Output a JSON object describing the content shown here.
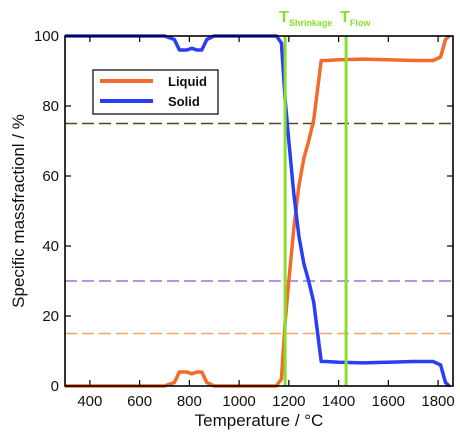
{
  "chart_data": {
    "type": "line",
    "xlabel": "Temperature / °C",
    "ylabel": "Specific massfractionl / %",
    "xlim": [
      300,
      1860
    ],
    "ylim": [
      0,
      100
    ],
    "xticks": [
      400,
      600,
      800,
      1000,
      1200,
      1400,
      1600,
      1800
    ],
    "yticks": [
      0,
      20,
      40,
      60,
      80,
      100
    ],
    "x_tick_labels": [
      "400",
      "600",
      "800",
      "1000",
      "1200",
      "1400",
      "1600",
      "1800"
    ],
    "y_tick_labels": [
      "0",
      "20",
      "40",
      "60",
      "80",
      "100"
    ],
    "legend_position": "top-left",
    "series": [
      {
        "name": "Liquid",
        "color": "#f26b2a",
        "x": [
          300,
          700,
          740,
          760,
          790,
          810,
          830,
          850,
          870,
          900,
          1000,
          1100,
          1150,
          1170,
          1185,
          1200,
          1220,
          1240,
          1260,
          1280,
          1300,
          1330,
          1350,
          1400,
          1500,
          1600,
          1700,
          1780,
          1810,
          1830,
          1845
        ],
        "y": [
          0,
          0,
          1,
          4,
          4,
          3.5,
          4,
          4,
          1,
          0,
          0,
          0,
          0,
          2,
          18,
          30,
          45,
          57,
          65,
          70,
          76,
          93,
          93,
          93.2,
          93.4,
          93.2,
          93,
          93,
          94,
          99,
          100
        ]
      },
      {
        "name": "Solid",
        "color": "#2b3df5",
        "x": [
          300,
          700,
          740,
          760,
          790,
          810,
          830,
          850,
          870,
          900,
          1000,
          1100,
          1150,
          1170,
          1185,
          1200,
          1220,
          1240,
          1260,
          1280,
          1300,
          1330,
          1350,
          1400,
          1500,
          1600,
          1700,
          1780,
          1810,
          1830,
          1845
        ],
        "y": [
          100,
          100,
          99,
          96,
          96,
          96.5,
          96,
          96,
          99,
          100,
          100,
          100,
          100,
          98,
          82,
          70,
          55,
          43,
          35,
          30,
          24,
          7,
          7,
          6.8,
          6.6,
          6.8,
          7,
          7,
          6,
          1,
          0
        ]
      }
    ],
    "reference_lines": {
      "horizontal": [
        {
          "y": 75,
          "color": "#4d4a1a",
          "style": "dashed"
        },
        {
          "y": 30,
          "color": "#a46bf0",
          "style": "dashed"
        },
        {
          "y": 15,
          "color": "#f5a566",
          "style": "dashed"
        }
      ],
      "vertical": [
        {
          "x": 1185,
          "color": "#86e02b",
          "label_main": "T",
          "label_sub": "Shrinkage"
        },
        {
          "x": 1430,
          "color": "#86e02b",
          "label_main": "T",
          "label_sub": "Flow"
        }
      ]
    }
  }
}
